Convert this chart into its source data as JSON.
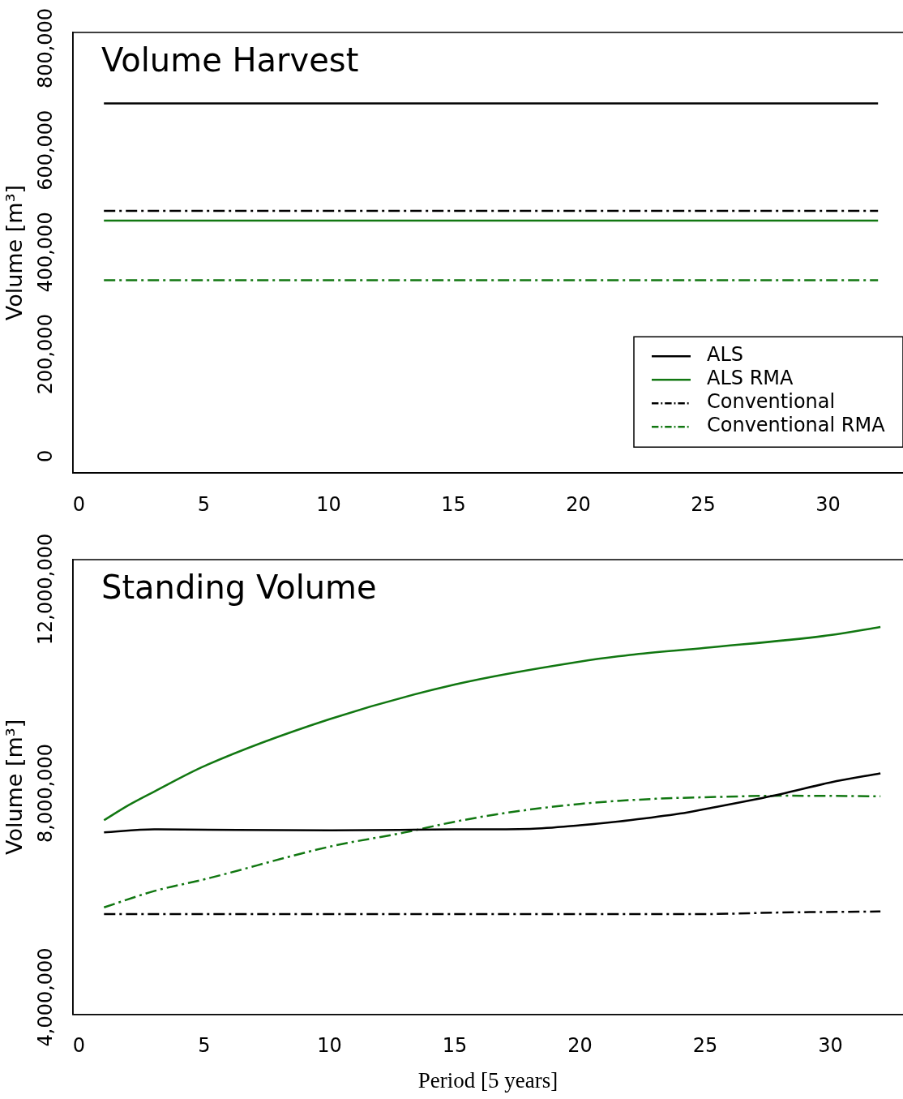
{
  "chart_data": [
    {
      "type": "line",
      "title": "Volume Harvest",
      "ylabel": "Volume [m³]",
      "xlim": [
        -0.24,
        33
      ],
      "xticks": [
        0,
        5,
        10,
        15,
        20,
        25,
        30
      ],
      "ylim": [
        -33000,
        831000
      ],
      "yticks": [
        0,
        {
          "value": 200000,
          "label": "200,000"
        },
        {
          "value": 400000,
          "label": "400,000"
        },
        {
          "value": 600000,
          "label": "600,000"
        },
        {
          "value": 800000,
          "label": "800,000"
        }
      ],
      "grid": false,
      "legend": "bottom right",
      "x": [
        1,
        32
      ],
      "series": [
        {
          "name": "ALS",
          "color": "#000000",
          "values": [
            692000,
            692000
          ],
          "line_style": "solid"
        },
        {
          "name": "ALS RMA",
          "color": "#117711",
          "values": [
            462000,
            462000
          ],
          "line_style": "solid"
        },
        {
          "name": "Conventional",
          "color": "#000000",
          "values": [
            481000,
            481000
          ],
          "line_style": "dashed"
        },
        {
          "name": "Conventional RMA",
          "color": "#117711",
          "values": [
            345000,
            345000
          ],
          "line_style": "dashed"
        }
      ]
    },
    {
      "type": "line",
      "title": "Standing Volume",
      "ylabel": "Volume [m³]",
      "xlabel": "Period [5 years]",
      "xlim": [
        -0.24,
        32.9
      ],
      "xticks": [
        0,
        5,
        10,
        15,
        20,
        25,
        30
      ],
      "ylim": [
        3660000,
        12580000
      ],
      "yticks": [
        {
          "value": 4000000,
          "label": "4,000,000"
        },
        {
          "value": 8000000,
          "label": "8,000,000"
        },
        {
          "value": 12000000,
          "label": "12,000,000"
        }
      ],
      "grid": false,
      "legend": false,
      "series": [
        {
          "color": "#000000",
          "line_style": "solid",
          "x": [
            1,
            3,
            10,
            15,
            18,
            20,
            22,
            24,
            25,
            28,
            30,
            32
          ],
          "values": [
            7230000,
            7290000,
            7270000,
            7290000,
            7300000,
            7370000,
            7470000,
            7600000,
            7690000,
            7980000,
            8210000,
            8390000
          ]
        },
        {
          "color": "#117711",
          "line_style": "solid",
          "x": [
            1,
            2,
            3,
            5,
            10,
            15,
            20,
            22,
            25,
            30,
            32
          ],
          "values": [
            7470000,
            7770000,
            8030000,
            8530000,
            9450000,
            10130000,
            10580000,
            10710000,
            10850000,
            11100000,
            11260000
          ]
        },
        {
          "color": "#000000",
          "line_style": "dashed",
          "x": [
            1,
            25,
            28,
            32
          ],
          "values": [
            5630000,
            5630000,
            5660000,
            5680000
          ]
        },
        {
          "color": "#117711",
          "line_style": "dashed",
          "x": [
            1,
            3,
            5,
            10,
            13,
            15,
            17,
            20,
            23,
            25,
            28,
            32
          ],
          "values": [
            5760000,
            6080000,
            6310000,
            6950000,
            7230000,
            7440000,
            7610000,
            7790000,
            7890000,
            7920000,
            7950000,
            7940000
          ]
        }
      ]
    }
  ]
}
